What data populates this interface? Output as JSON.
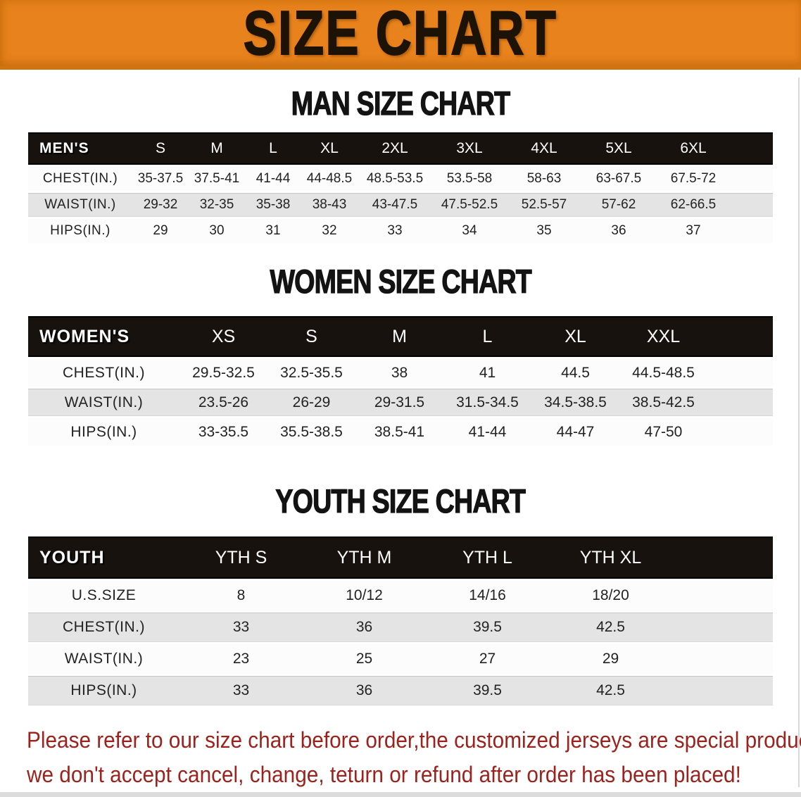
{
  "banner": {
    "title": "SIZE CHART"
  },
  "sections": {
    "men": {
      "heading": "MAN SIZE CHART"
    },
    "women": {
      "heading": "WOMEN SIZE CHART"
    },
    "youth": {
      "heading": "YOUTH SIZE CHART"
    }
  },
  "tables": {
    "men": {
      "corner_label": "MEN'S",
      "sizes": [
        "S",
        "M",
        "L",
        "XL",
        "2XL",
        "3XL",
        "4XL",
        "5XL",
        "6XL"
      ],
      "rows": [
        {
          "label": "CHEST(IN.)",
          "values": [
            "35-37.5",
            "37.5-41",
            "41-44",
            "44-48.5",
            "48.5-53.5",
            "53.5-58",
            "58-63",
            "63-67.5",
            "67.5-72"
          ]
        },
        {
          "label": "WAIST(IN.)",
          "values": [
            "29-32",
            "32-35",
            "35-38",
            "38-43",
            "43-47.5",
            "47.5-52.5",
            "52.5-57",
            "57-62",
            "62-66.5"
          ]
        },
        {
          "label": "HIPS(IN.)",
          "values": [
            "29",
            "30",
            "31",
            "32",
            "33",
            "34",
            "35",
            "36",
            "37"
          ]
        }
      ]
    },
    "women": {
      "corner_label": "WOMEN'S",
      "sizes": [
        "XS",
        "S",
        "M",
        "L",
        "XL",
        "XXL"
      ],
      "rows": [
        {
          "label": "CHEST(IN.)",
          "values": [
            "29.5-32.5",
            "32.5-35.5",
            "38",
            "41",
            "44.5",
            "44.5-48.5"
          ]
        },
        {
          "label": "WAIST(IN.)",
          "values": [
            "23.5-26",
            "26-29",
            "29-31.5",
            "31.5-34.5",
            "34.5-38.5",
            "38.5-42.5"
          ]
        },
        {
          "label": "HIPS(IN.)",
          "values": [
            "33-35.5",
            "35.5-38.5",
            "38.5-41",
            "41-44",
            "44-47",
            "47-50"
          ]
        }
      ]
    },
    "youth": {
      "corner_label": "YOUTH",
      "sizes": [
        "YTH S",
        "YTH M",
        "YTH L",
        "YTH XL"
      ],
      "rows": [
        {
          "label": "U.S.SIZE",
          "values": [
            "8",
            "10/12",
            "14/16",
            "18/20"
          ]
        },
        {
          "label": "CHEST(IN.)",
          "values": [
            "33",
            "36",
            "39.5",
            "42.5"
          ]
        },
        {
          "label": "WAIST(IN.)",
          "values": [
            "23",
            "25",
            "27",
            "29"
          ]
        },
        {
          "label": "HIPS(IN.)",
          "values": [
            "33",
            "36",
            "39.5",
            "42.5"
          ]
        }
      ]
    }
  },
  "disclaimer": {
    "line1": "Please refer to our size chart before order,the customized jerseys are special products,",
    "line2": "we don't accept cancel, change, teturn or refund after order has been placed!"
  },
  "colors": {
    "banner_orange": "#E8821C",
    "banner_title_black": "#1C1206",
    "table_header_black": "#17120E",
    "table_header_text": "#FFFFFF",
    "row_gray": "#E4E4E4",
    "row_white": "#FCFCFC",
    "body_text": "#222222",
    "disclaimer_red": "#9C231D"
  }
}
